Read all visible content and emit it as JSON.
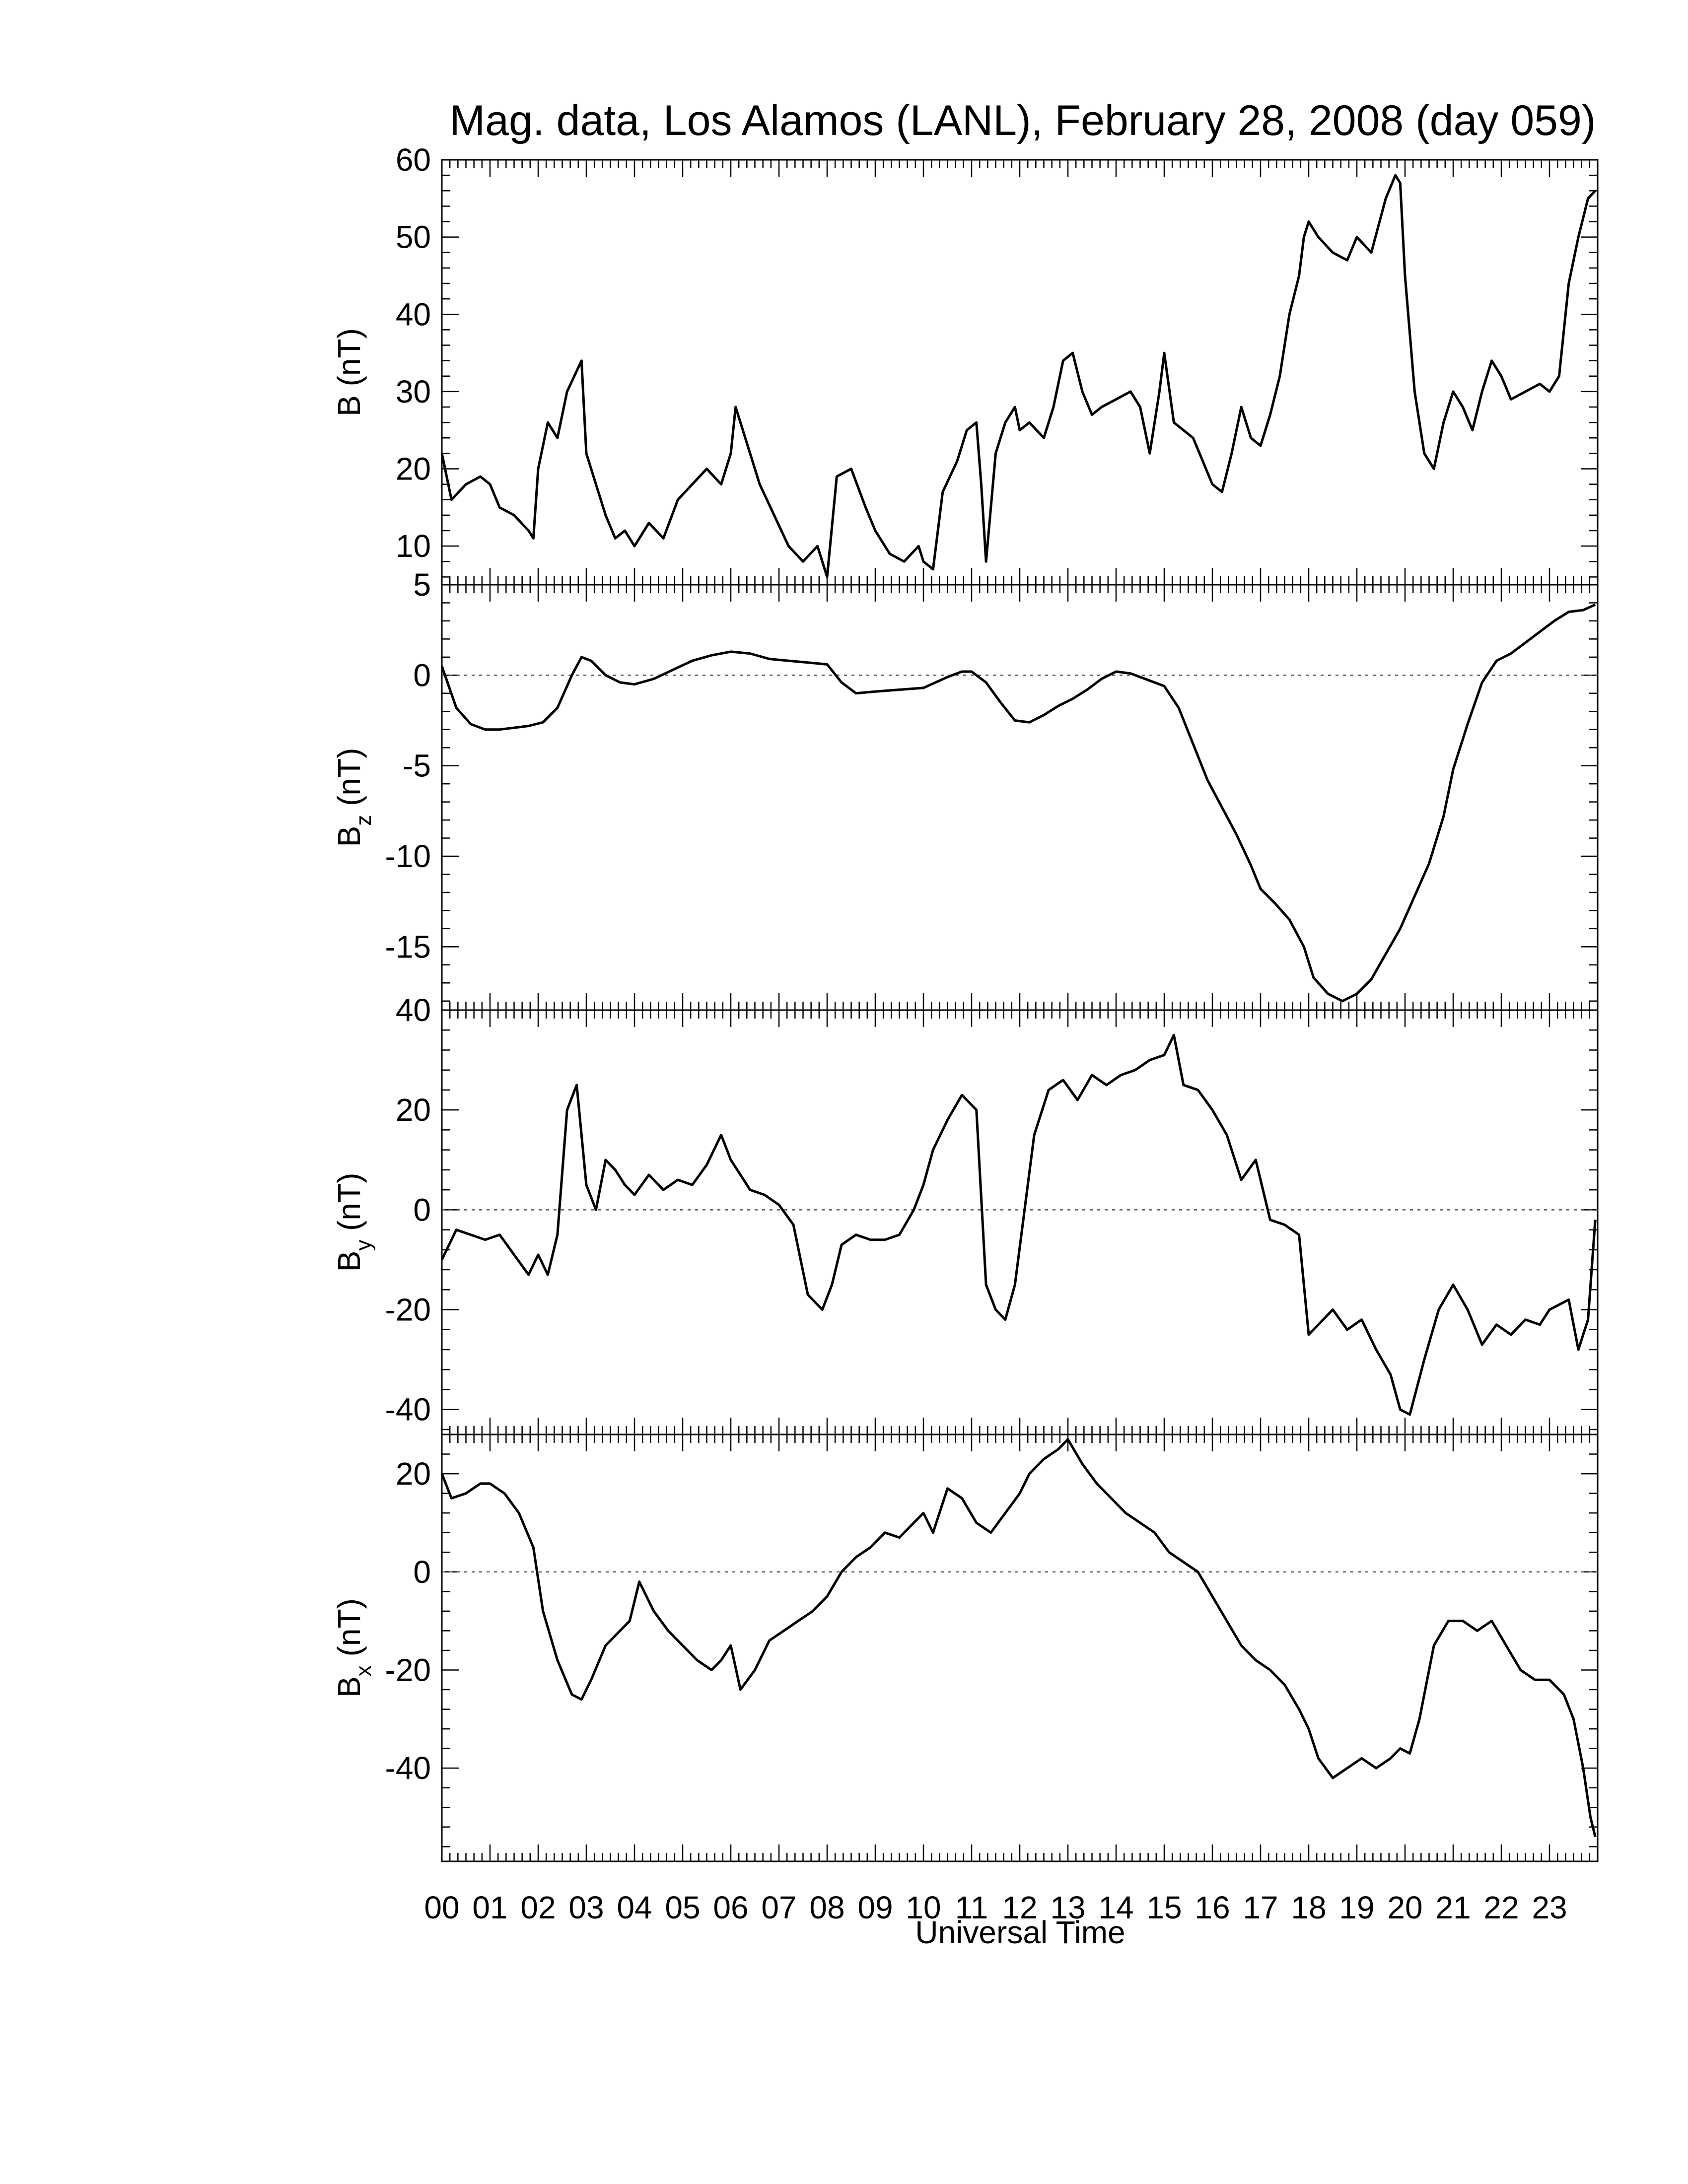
{
  "title": "Mag. data, Los Alamos (LANL), February 28, 2008 (day 059)",
  "colors": {
    "line": "#000000",
    "background": "#ffffff",
    "zero_line": "#555555"
  },
  "chart_data": [
    {
      "type": "line",
      "ylabel": "B (nT)",
      "ylim": [
        5,
        60
      ],
      "yticks": [
        10,
        20,
        30,
        40,
        50,
        60
      ],
      "extra_tick_labels": [
        5
      ],
      "zero_line": false,
      "x": [
        0.0,
        0.2,
        0.5,
        0.8,
        1.0,
        1.2,
        1.5,
        1.8,
        1.9,
        2.0,
        2.2,
        2.4,
        2.6,
        2.9,
        3.0,
        3.2,
        3.4,
        3.6,
        3.8,
        4.0,
        4.3,
        4.6,
        4.9,
        5.2,
        5.5,
        5.8,
        6.0,
        6.1,
        6.3,
        6.6,
        6.9,
        7.2,
        7.5,
        7.8,
        8.0,
        8.2,
        8.5,
        8.8,
        9.0,
        9.3,
        9.6,
        9.9,
        10.0,
        10.2,
        10.4,
        10.7,
        10.9,
        11.1,
        11.2,
        11.3,
        11.5,
        11.7,
        11.9,
        12.0,
        12.2,
        12.5,
        12.7,
        12.9,
        13.1,
        13.3,
        13.5,
        13.7,
        14.0,
        14.3,
        14.5,
        14.7,
        14.9,
        15.0,
        15.2,
        15.4,
        15.6,
        15.8,
        16.0,
        16.2,
        16.4,
        16.6,
        16.8,
        17.0,
        17.2,
        17.4,
        17.6,
        17.8,
        17.9,
        18.0,
        18.2,
        18.5,
        18.8,
        19.0,
        19.3,
        19.6,
        19.8,
        19.9,
        20.0,
        20.2,
        20.4,
        20.6,
        20.8,
        21.0,
        21.2,
        21.4,
        21.6,
        21.8,
        22.0,
        22.2,
        22.5,
        22.8,
        23.0,
        23.2,
        23.4,
        23.6,
        23.8,
        23.95
      ],
      "series": [
        {
          "values": [
            22,
            16,
            18,
            19,
            18,
            15,
            14,
            12,
            11,
            20,
            26,
            24,
            30,
            34,
            22,
            18,
            14,
            11,
            12,
            10,
            13,
            11,
            16,
            18,
            20,
            18,
            22,
            28,
            24,
            18,
            14,
            10,
            8,
            10,
            6,
            19,
            20,
            15,
            12,
            9,
            8,
            10,
            8,
            7,
            17,
            21,
            25,
            26,
            18,
            8,
            22,
            26,
            28,
            25,
            26,
            24,
            28,
            34,
            35,
            30,
            27,
            28,
            29,
            30,
            28,
            22,
            30,
            35,
            26,
            25,
            24,
            21,
            18,
            17,
            22,
            28,
            24,
            23,
            27,
            32,
            40,
            45,
            50,
            52,
            50,
            48,
            47,
            50,
            48,
            55,
            58,
            57,
            45,
            30,
            22,
            20,
            26,
            30,
            28,
            25,
            30,
            34,
            32,
            29,
            30,
            31,
            30,
            32,
            44,
            50,
            55,
            56
          ]
        }
      ]
    },
    {
      "type": "line",
      "ylabel": "Bz (nT)",
      "ylabel_main": "B",
      "ylabel_sub": "z",
      "ylabel_unit": "(nT)",
      "ylim": [
        -18.5,
        5
      ],
      "yticks": [
        -15,
        -10,
        -5,
        0,
        5
      ],
      "zero_line": true,
      "x": [
        0.0,
        0.3,
        0.6,
        0.9,
        1.2,
        1.5,
        1.8,
        2.1,
        2.4,
        2.7,
        2.9,
        3.1,
        3.4,
        3.7,
        4.0,
        4.4,
        4.8,
        5.2,
        5.6,
        6.0,
        6.4,
        6.8,
        7.2,
        7.6,
        8.0,
        8.3,
        8.6,
        9.0,
        9.5,
        10.0,
        10.5,
        10.8,
        11.0,
        11.3,
        11.6,
        11.9,
        12.2,
        12.5,
        12.8,
        13.1,
        13.4,
        13.7,
        14.0,
        14.3,
        14.6,
        15.0,
        15.3,
        15.6,
        15.9,
        16.2,
        16.5,
        16.8,
        17.0,
        17.3,
        17.6,
        17.9,
        18.1,
        18.4,
        18.7,
        19.0,
        19.3,
        19.6,
        19.9,
        20.2,
        20.5,
        20.8,
        21.0,
        21.3,
        21.6,
        21.9,
        22.2,
        22.5,
        22.8,
        23.1,
        23.4,
        23.7,
        23.95
      ],
      "series": [
        {
          "values": [
            0.5,
            -1.8,
            -2.7,
            -3.0,
            -3.0,
            -2.9,
            -2.8,
            -2.6,
            -1.8,
            0.0,
            1.0,
            0.8,
            0.0,
            -0.4,
            -0.5,
            -0.2,
            0.3,
            0.8,
            1.1,
            1.3,
            1.2,
            0.9,
            0.8,
            0.7,
            0.6,
            -0.4,
            -1.0,
            -0.9,
            -0.8,
            -0.7,
            -0.1,
            0.2,
            0.2,
            -0.4,
            -1.5,
            -2.5,
            -2.6,
            -2.2,
            -1.7,
            -1.3,
            -0.8,
            -0.2,
            0.2,
            0.1,
            -0.2,
            -0.6,
            -1.8,
            -3.8,
            -5.8,
            -7.3,
            -8.8,
            -10.5,
            -11.8,
            -12.6,
            -13.5,
            -15.0,
            -16.7,
            -17.6,
            -18.0,
            -17.6,
            -16.8,
            -15.4,
            -14.0,
            -12.2,
            -10.4,
            -7.8,
            -5.2,
            -2.7,
            -0.4,
            0.8,
            1.2,
            1.8,
            2.4,
            3.0,
            3.5,
            3.6,
            3.9
          ]
        }
      ]
    },
    {
      "type": "line",
      "ylabel": "By (nT)",
      "ylabel_main": "B",
      "ylabel_sub": "y",
      "ylabel_unit": "(nT)",
      "ylim": [
        -45,
        40
      ],
      "yticks": [
        -40,
        -20,
        0,
        20,
        40
      ],
      "zero_line": true,
      "x": [
        0.0,
        0.3,
        0.6,
        0.9,
        1.2,
        1.5,
        1.8,
        2.0,
        2.2,
        2.4,
        2.6,
        2.8,
        3.0,
        3.2,
        3.4,
        3.6,
        3.8,
        4.0,
        4.3,
        4.6,
        4.9,
        5.2,
        5.5,
        5.8,
        6.0,
        6.2,
        6.4,
        6.7,
        7.0,
        7.3,
        7.6,
        7.9,
        8.1,
        8.3,
        8.6,
        8.9,
        9.2,
        9.5,
        9.8,
        10.0,
        10.2,
        10.5,
        10.8,
        11.1,
        11.3,
        11.5,
        11.7,
        11.9,
        12.1,
        12.3,
        12.6,
        12.9,
        13.2,
        13.5,
        13.8,
        14.1,
        14.4,
        14.7,
        15.0,
        15.2,
        15.4,
        15.7,
        16.0,
        16.3,
        16.6,
        16.9,
        17.2,
        17.5,
        17.8,
        18.0,
        18.2,
        18.5,
        18.8,
        19.1,
        19.4,
        19.7,
        19.9,
        20.1,
        20.4,
        20.7,
        21.0,
        21.3,
        21.6,
        21.9,
        22.2,
        22.5,
        22.8,
        23.0,
        23.2,
        23.4,
        23.6,
        23.8,
        23.95
      ],
      "series": [
        {
          "values": [
            -10,
            -4,
            -5,
            -6,
            -5,
            -9,
            -13,
            -9,
            -13,
            -5,
            20,
            25,
            5,
            0,
            10,
            8,
            5,
            3,
            7,
            4,
            6,
            5,
            9,
            15,
            10,
            7,
            4,
            3,
            1,
            -3,
            -17,
            -20,
            -15,
            -7,
            -5,
            -6,
            -6,
            -5,
            0,
            5,
            12,
            18,
            23,
            20,
            -15,
            -20,
            -22,
            -15,
            0,
            15,
            24,
            26,
            22,
            27,
            25,
            27,
            28,
            30,
            31,
            35,
            25,
            24,
            20,
            15,
            6,
            10,
            -2,
            -3,
            -5,
            -25,
            -23,
            -20,
            -24,
            -22,
            -28,
            -33,
            -40,
            -41,
            -30,
            -20,
            -15,
            -20,
            -27,
            -23,
            -25,
            -22,
            -23,
            -20,
            -19,
            -18,
            -28,
            -22,
            -2
          ]
        }
      ]
    },
    {
      "type": "line",
      "ylabel": "Bx (nT)",
      "ylabel_main": "B",
      "ylabel_sub": "x",
      "ylabel_unit": "(nT)",
      "ylim": [
        -59,
        28
      ],
      "yticks": [
        -40,
        -20,
        0,
        20
      ],
      "zero_line": true,
      "x": [
        0.0,
        0.2,
        0.5,
        0.8,
        1.0,
        1.3,
        1.6,
        1.9,
        2.1,
        2.4,
        2.7,
        2.9,
        3.1,
        3.4,
        3.7,
        3.9,
        4.1,
        4.4,
        4.7,
        5.0,
        5.3,
        5.6,
        5.8,
        6.0,
        6.2,
        6.5,
        6.8,
        7.1,
        7.4,
        7.7,
        8.0,
        8.3,
        8.6,
        8.9,
        9.2,
        9.5,
        9.8,
        10.0,
        10.2,
        10.5,
        10.8,
        11.1,
        11.4,
        11.7,
        12.0,
        12.2,
        12.5,
        12.8,
        13.0,
        13.3,
        13.6,
        13.9,
        14.2,
        14.5,
        14.8,
        15.1,
        15.4,
        15.7,
        16.0,
        16.3,
        16.6,
        16.9,
        17.2,
        17.5,
        17.8,
        18.0,
        18.2,
        18.5,
        18.8,
        19.1,
        19.4,
        19.7,
        19.9,
        20.1,
        20.3,
        20.6,
        20.9,
        21.2,
        21.5,
        21.8,
        22.1,
        22.4,
        22.7,
        23.0,
        23.3,
        23.5,
        23.7,
        23.85,
        23.95
      ],
      "series": [
        {
          "values": [
            20,
            15,
            16,
            18,
            18,
            16,
            12,
            5,
            -8,
            -18,
            -25,
            -26,
            -22,
            -15,
            -12,
            -10,
            -2,
            -8,
            -12,
            -15,
            -18,
            -20,
            -18,
            -15,
            -24,
            -20,
            -14,
            -12,
            -10,
            -8,
            -5,
            0,
            3,
            5,
            8,
            7,
            10,
            12,
            8,
            17,
            15,
            10,
            8,
            12,
            16,
            20,
            23,
            25,
            27,
            22,
            18,
            15,
            12,
            10,
            8,
            4,
            2,
            0,
            -5,
            -10,
            -15,
            -18,
            -20,
            -23,
            -28,
            -32,
            -38,
            -42,
            -40,
            -38,
            -40,
            -38,
            -36,
            -37,
            -30,
            -15,
            -10,
            -10,
            -12,
            -10,
            -15,
            -20,
            -22,
            -22,
            -25,
            -30,
            -40,
            -50,
            -54
          ]
        }
      ]
    }
  ],
  "x_axis": {
    "label": "Universal Time",
    "xlim": [
      0,
      24
    ],
    "tick_labels": [
      "00",
      "01",
      "02",
      "03",
      "04",
      "05",
      "06",
      "07",
      "08",
      "09",
      "10",
      "11",
      "12",
      "13",
      "14",
      "15",
      "16",
      "17",
      "18",
      "19",
      "20",
      "21",
      "22",
      "23"
    ]
  }
}
